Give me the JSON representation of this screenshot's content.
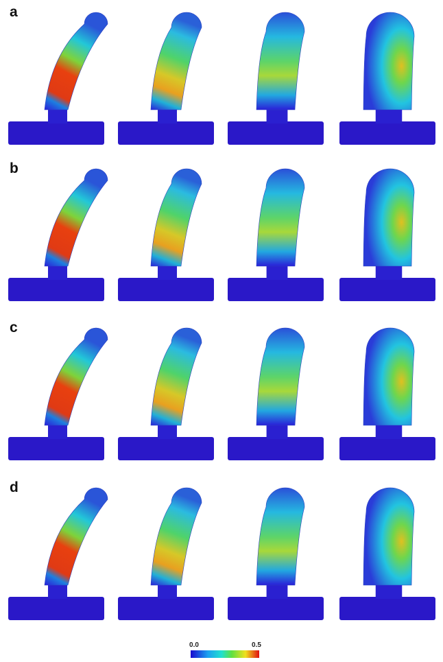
{
  "panels": {
    "rows": [
      {
        "label": "a"
      },
      {
        "label": "b"
      },
      {
        "label": "c"
      },
      {
        "label": "d"
      }
    ]
  },
  "colorbar": {
    "min_label": "0.0",
    "max_label": "0.5"
  }
}
